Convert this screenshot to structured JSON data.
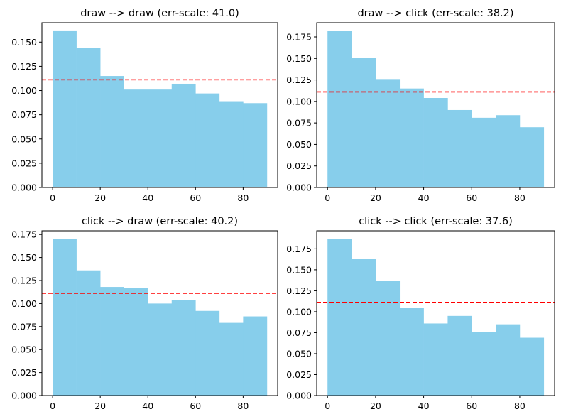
{
  "chart_data": [
    {
      "type": "bar",
      "title": "draw --> draw (err-scale: 41.0)",
      "bin_edges": [
        0,
        10,
        20,
        30,
        40,
        50,
        60,
        70,
        80,
        90
      ],
      "values": [
        0.162,
        0.144,
        0.115,
        0.101,
        0.101,
        0.107,
        0.097,
        0.089,
        0.087
      ],
      "reference_line": {
        "y": 0.1111,
        "style": "dashed",
        "color": "#ff0000"
      },
      "xlim": [
        -4.5,
        94.5
      ],
      "ylim": [
        0,
        0.17
      ],
      "yticks": [
        "0.000",
        "0.025",
        "0.050",
        "0.075",
        "0.100",
        "0.125",
        "0.150"
      ],
      "xticks": [
        "0",
        "20",
        "40",
        "60",
        "80"
      ],
      "xlabel": "",
      "ylabel": ""
    },
    {
      "type": "bar",
      "title": "draw --> click (err-scale: 38.2)",
      "bin_edges": [
        0,
        10,
        20,
        30,
        40,
        50,
        60,
        70,
        80,
        90
      ],
      "values": [
        0.182,
        0.151,
        0.126,
        0.115,
        0.104,
        0.09,
        0.081,
        0.084,
        0.07
      ],
      "reference_line": {
        "y": 0.1111,
        "style": "dashed",
        "color": "#ff0000"
      },
      "xlim": [
        -4.5,
        94.5
      ],
      "ylim": [
        0,
        0.1915
      ],
      "yticks": [
        "0.000",
        "0.025",
        "0.050",
        "0.075",
        "0.100",
        "0.125",
        "0.150",
        "0.175"
      ],
      "xticks": [
        "0",
        "20",
        "40",
        "60",
        "80"
      ],
      "xlabel": "",
      "ylabel": ""
    },
    {
      "type": "bar",
      "title": "click --> draw (err-scale: 40.2)",
      "bin_edges": [
        0,
        10,
        20,
        30,
        40,
        50,
        60,
        70,
        80,
        90
      ],
      "values": [
        0.17,
        0.136,
        0.118,
        0.117,
        0.1,
        0.104,
        0.092,
        0.079,
        0.086
      ],
      "reference_line": {
        "y": 0.1111,
        "style": "dashed",
        "color": "#ff0000"
      },
      "xlim": [
        -4.5,
        94.5
      ],
      "ylim": [
        0,
        0.179
      ],
      "yticks": [
        "0.000",
        "0.025",
        "0.050",
        "0.075",
        "0.100",
        "0.125",
        "0.150",
        "0.175"
      ],
      "xticks": [
        "0",
        "20",
        "40",
        "60",
        "80"
      ],
      "xlabel": "",
      "ylabel": ""
    },
    {
      "type": "bar",
      "title": "click --> click (err-scale: 37.6)",
      "bin_edges": [
        0,
        10,
        20,
        30,
        40,
        50,
        60,
        70,
        80,
        90
      ],
      "values": [
        0.187,
        0.163,
        0.137,
        0.105,
        0.086,
        0.095,
        0.076,
        0.085,
        0.069
      ],
      "reference_line": {
        "y": 0.1111,
        "style": "dashed",
        "color": "#ff0000"
      },
      "xlim": [
        -4.5,
        94.5
      ],
      "ylim": [
        0,
        0.1965
      ],
      "yticks": [
        "0.000",
        "0.025",
        "0.050",
        "0.075",
        "0.100",
        "0.125",
        "0.150",
        "0.175"
      ],
      "xticks": [
        "0",
        "20",
        "40",
        "60",
        "80"
      ],
      "xlabel": "",
      "ylabel": ""
    }
  ],
  "colors": {
    "bar": "#87ceeb",
    "reference": "#ff0000",
    "axis": "#000000"
  }
}
